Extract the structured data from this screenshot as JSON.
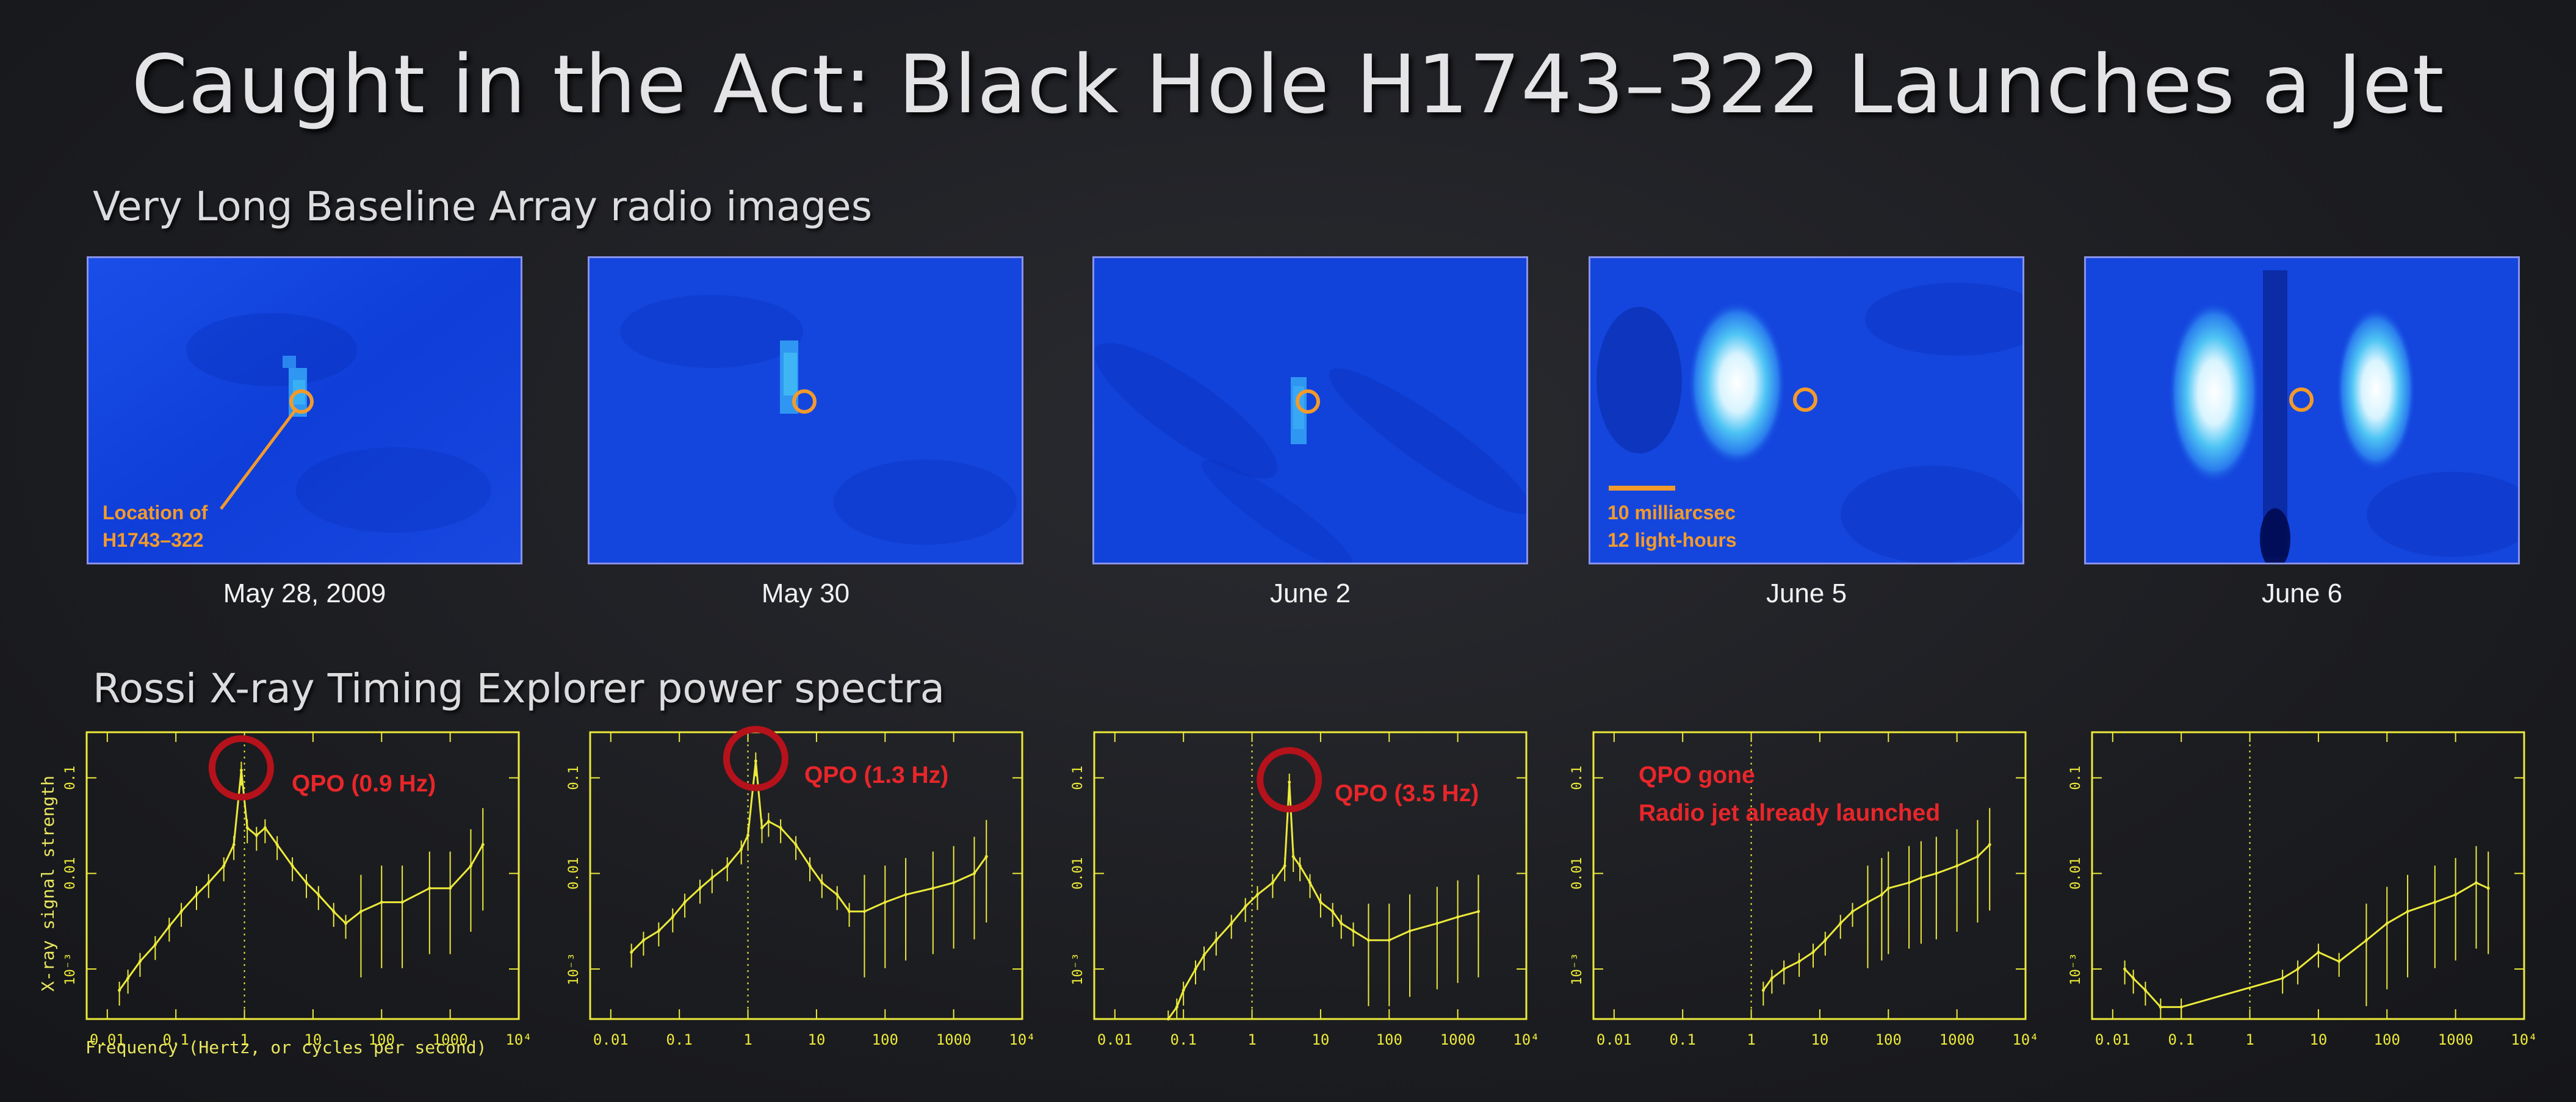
{
  "title": "Caught in the Act: Black Hole H1743–322 Launches a Jet",
  "radio_section": {
    "heading": "Very Long Baseline Array radio images",
    "panels": [
      {
        "date": "May 28, 2009"
      },
      {
        "date": "May 30"
      },
      {
        "date": "June 2"
      },
      {
        "date": "June 5"
      },
      {
        "date": "June 6"
      }
    ],
    "location_label_line1": "Location of",
    "location_label_line2": "H1743–322",
    "scale_label_line1": "10 milliarcsec",
    "scale_label_line2": "12 light-hours",
    "colors": {
      "background": "#1040e0",
      "marker": "#f39a2c"
    }
  },
  "xray_section": {
    "heading": "Rossi X-ray Timing Explorer power spectra",
    "ylabel": "X-ray signal strength",
    "xlabel": "Frequency (Hertz, or cycles per second)",
    "x_ticks": [
      "0.01",
      "0.1",
      "1",
      "10",
      "100",
      "1000",
      "10⁴"
    ],
    "y_ticks": [
      "10⁻³",
      "0.01",
      "0.1"
    ],
    "annotations": [
      {
        "text": "QPO (0.9 Hz)"
      },
      {
        "text": "QPO (1.3 Hz)"
      },
      {
        "text": "QPO (3.5 Hz)"
      },
      {
        "line1": "QPO gone",
        "line2": "Radio jet already launched"
      }
    ],
    "colors": {
      "trace": "#ecea3a",
      "circle": "#b5121b",
      "qpo_text": "#e8262a"
    }
  },
  "chart_data": [
    {
      "type": "line",
      "panel": "May 28, 2009",
      "xscale": "log",
      "yscale": "log",
      "xlim": [
        0.005,
        10000
      ],
      "ylim": [
        0.0003,
        0.3
      ],
      "qpo_hz": 0.9,
      "x": [
        0.015,
        0.02,
        0.03,
        0.05,
        0.08,
        0.12,
        0.2,
        0.3,
        0.5,
        0.7,
        0.9,
        1.1,
        1.5,
        2,
        3,
        5,
        8,
        12,
        20,
        30,
        50,
        100,
        200,
        500,
        1000,
        2000,
        3000
      ],
      "y": [
        0.0006,
        0.0008,
        0.0012,
        0.0018,
        0.0028,
        0.004,
        0.006,
        0.008,
        0.012,
        0.02,
        0.12,
        0.03,
        0.025,
        0.03,
        0.02,
        0.012,
        0.008,
        0.006,
        0.004,
        0.003,
        0.004,
        0.005,
        0.005,
        0.007,
        0.007,
        0.012,
        0.02
      ]
    },
    {
      "type": "line",
      "panel": "May 30",
      "xscale": "log",
      "yscale": "log",
      "xlim": [
        0.005,
        10000
      ],
      "ylim": [
        0.0003,
        0.3
      ],
      "qpo_hz": 1.3,
      "x": [
        0.02,
        0.03,
        0.05,
        0.08,
        0.12,
        0.2,
        0.3,
        0.5,
        0.8,
        1.0,
        1.3,
        1.6,
        2,
        3,
        5,
        8,
        12,
        20,
        30,
        50,
        100,
        200,
        500,
        1000,
        2000,
        3000
      ],
      "y": [
        0.0015,
        0.002,
        0.0025,
        0.0035,
        0.005,
        0.007,
        0.009,
        0.012,
        0.018,
        0.025,
        0.15,
        0.03,
        0.035,
        0.03,
        0.02,
        0.012,
        0.008,
        0.006,
        0.004,
        0.004,
        0.005,
        0.006,
        0.007,
        0.008,
        0.01,
        0.015
      ]
    },
    {
      "type": "line",
      "panel": "June 2",
      "xscale": "log",
      "yscale": "log",
      "xlim": [
        0.005,
        10000
      ],
      "ylim": [
        0.0003,
        0.3
      ],
      "qpo_hz": 3.5,
      "x": [
        0.06,
        0.08,
        0.1,
        0.15,
        0.2,
        0.3,
        0.5,
        0.8,
        1.2,
        2,
        3,
        3.5,
        4,
        5,
        7,
        10,
        15,
        20,
        30,
        50,
        100,
        200,
        500,
        1000,
        2000
      ],
      "y": [
        0.0003,
        0.0004,
        0.0006,
        0.001,
        0.0014,
        0.002,
        0.003,
        0.0045,
        0.006,
        0.008,
        0.012,
        0.09,
        0.015,
        0.012,
        0.008,
        0.005,
        0.004,
        0.003,
        0.0025,
        0.002,
        0.002,
        0.0025,
        0.003,
        0.0035,
        0.004
      ]
    },
    {
      "type": "line",
      "panel": "June 5",
      "xscale": "log",
      "yscale": "log",
      "xlim": [
        0.005,
        10000
      ],
      "ylim": [
        0.0003,
        0.3
      ],
      "x": [
        1.5,
        2,
        3,
        5,
        8,
        12,
        20,
        30,
        50,
        80,
        100,
        200,
        300,
        500,
        1000,
        2000,
        3000
      ],
      "y": [
        0.0006,
        0.0008,
        0.001,
        0.0012,
        0.0015,
        0.002,
        0.003,
        0.004,
        0.005,
        0.006,
        0.007,
        0.008,
        0.009,
        0.01,
        0.012,
        0.015,
        0.02
      ]
    },
    {
      "type": "line",
      "panel": "June 6",
      "xscale": "log",
      "yscale": "log",
      "xlim": [
        0.005,
        10000
      ],
      "ylim": [
        0.0003,
        0.3
      ],
      "x": [
        0.015,
        0.02,
        0.03,
        0.05,
        0.1,
        3,
        5,
        10,
        20,
        50,
        100,
        200,
        500,
        1000,
        2000,
        3000
      ],
      "y": [
        0.001,
        0.0008,
        0.0006,
        0.0004,
        0.0004,
        0.0008,
        0.001,
        0.0015,
        0.0012,
        0.002,
        0.003,
        0.004,
        0.005,
        0.006,
        0.008,
        0.007
      ]
    }
  ]
}
